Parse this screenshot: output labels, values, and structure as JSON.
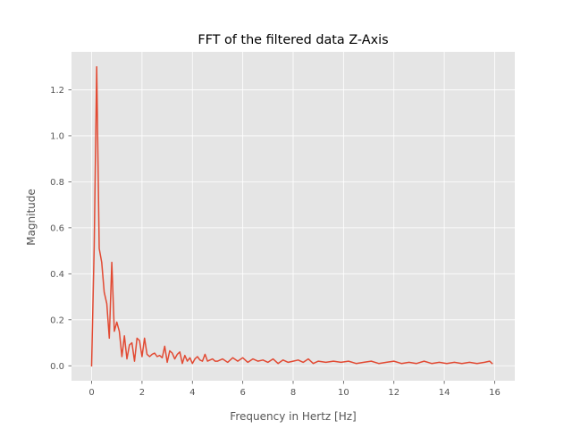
{
  "chart_data": {
    "type": "line",
    "title": "FFT of the filtered data Z-Axis",
    "xlabel": "Frequency in Hertz [Hz]",
    "ylabel": "Magnitude",
    "xlim": [
      -0.8,
      16.8
    ],
    "ylim": [
      -0.065,
      1.365
    ],
    "xticks": [
      0,
      2,
      4,
      6,
      8,
      10,
      12,
      14,
      16
    ],
    "xtick_labels": [
      "0",
      "2",
      "4",
      "6",
      "8",
      "10",
      "12",
      "14",
      "16"
    ],
    "yticks": [
      0.0,
      0.2,
      0.4,
      0.6,
      0.8,
      1.0,
      1.2
    ],
    "ytick_labels": [
      "0.0",
      "0.2",
      "0.4",
      "0.6",
      "0.8",
      "1.0",
      "1.2"
    ],
    "grid": true,
    "style": "ggplot",
    "colors": {
      "series": "#E24A33",
      "panel": "#E5E5E5",
      "grid": "#FFFFFF"
    },
    "series": [
      {
        "x": [
          0.0,
          0.1,
          0.2,
          0.3,
          0.4,
          0.5,
          0.6,
          0.7,
          0.8,
          0.9,
          1.0,
          1.1,
          1.2,
          1.3,
          1.4,
          1.5,
          1.6,
          1.7,
          1.8,
          1.9,
          2.0,
          2.1,
          2.2,
          2.3,
          2.4,
          2.5,
          2.6,
          2.7,
          2.8,
          2.9,
          3.0,
          3.1,
          3.2,
          3.3,
          3.4,
          3.5,
          3.6,
          3.7,
          3.8,
          3.9,
          4.0,
          4.1,
          4.2,
          4.3,
          4.4,
          4.5,
          4.6,
          4.7,
          4.8,
          4.9,
          5.0,
          5.2,
          5.4,
          5.6,
          5.8,
          6.0,
          6.2,
          6.4,
          6.6,
          6.8,
          7.0,
          7.2,
          7.4,
          7.6,
          7.8,
          8.0,
          8.2,
          8.4,
          8.6,
          8.8,
          9.0,
          9.3,
          9.6,
          9.9,
          10.2,
          10.5,
          10.8,
          11.1,
          11.4,
          11.7,
          12.0,
          12.3,
          12.6,
          12.9,
          13.2,
          13.5,
          13.8,
          14.1,
          14.4,
          14.7,
          15.0,
          15.3,
          15.6,
          15.8,
          15.9
        ],
        "y": [
          0.0,
          0.52,
          1.3,
          0.51,
          0.45,
          0.32,
          0.27,
          0.12,
          0.45,
          0.15,
          0.19,
          0.15,
          0.04,
          0.13,
          0.03,
          0.09,
          0.1,
          0.02,
          0.12,
          0.11,
          0.04,
          0.12,
          0.05,
          0.04,
          0.05,
          0.055,
          0.04,
          0.045,
          0.035,
          0.085,
          0.015,
          0.065,
          0.055,
          0.03,
          0.05,
          0.06,
          0.01,
          0.045,
          0.02,
          0.035,
          0.01,
          0.03,
          0.04,
          0.025,
          0.02,
          0.05,
          0.02,
          0.025,
          0.03,
          0.02,
          0.02,
          0.03,
          0.015,
          0.035,
          0.02,
          0.035,
          0.015,
          0.03,
          0.02,
          0.025,
          0.015,
          0.03,
          0.01,
          0.025,
          0.015,
          0.02,
          0.025,
          0.015,
          0.03,
          0.01,
          0.02,
          0.015,
          0.02,
          0.015,
          0.02,
          0.01,
          0.015,
          0.02,
          0.01,
          0.015,
          0.02,
          0.01,
          0.015,
          0.01,
          0.02,
          0.01,
          0.015,
          0.01,
          0.015,
          0.01,
          0.015,
          0.01,
          0.015,
          0.02,
          0.01
        ]
      }
    ]
  }
}
